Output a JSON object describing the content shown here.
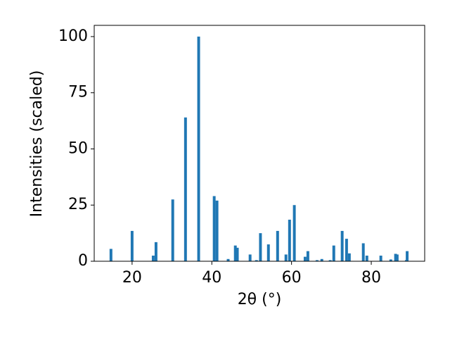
{
  "chart_data": {
    "type": "bar",
    "xlabel": "2θ (°)",
    "ylabel": "Intensities (scaled)",
    "x": [
      14.7,
      20.0,
      25.3,
      26.0,
      30.2,
      33.4,
      36.7,
      40.6,
      41.3,
      44.1,
      45.9,
      46.4,
      49.6,
      51.2,
      52.2,
      54.2,
      56.5,
      58.6,
      59.5,
      60.7,
      63.4,
      64.1,
      66.4,
      67.6,
      69.7,
      70.6,
      72.7,
      73.8,
      74.5,
      78.0,
      78.9,
      82.4,
      84.9,
      86.1,
      86.5,
      88.8,
      89.0
    ],
    "values": [
      5.5,
      13.5,
      2.5,
      8.5,
      27.5,
      64,
      100,
      29,
      27,
      1,
      7,
      6,
      3,
      0.5,
      12.5,
      7.5,
      13.5,
      3,
      18.5,
      25,
      2,
      4.5,
      0.5,
      1,
      0.5,
      7,
      13.5,
      10,
      3.5,
      8,
      2.5,
      2.5,
      0.8,
      3.3,
      3,
      0.5,
      4.5
    ],
    "bar_width": 0.7,
    "color": "#1f77b4",
    "xlim": [
      10.5,
      93.4
    ],
    "ylim": [
      0,
      105
    ],
    "xticks": [
      20,
      40,
      60,
      80
    ],
    "yticks": [
      0,
      25,
      50,
      75,
      100
    ]
  }
}
